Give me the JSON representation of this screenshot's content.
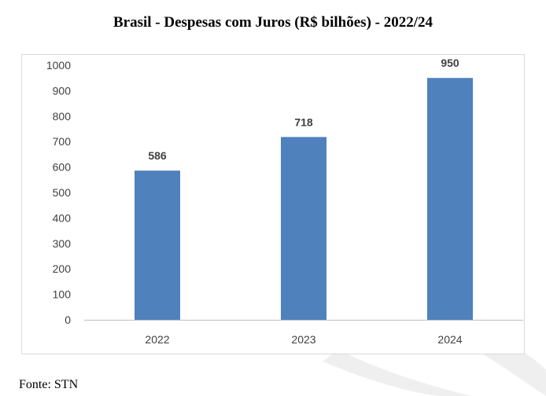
{
  "title": "Brasil - Despesas com Juros (R$ bilhões) - 2022/24",
  "source": "Fonte: STN",
  "colors": {
    "bar": "#4f81bd",
    "axis": "#bfbfbf",
    "tick_text": "#404040",
    "label_text": "#404040"
  },
  "chart_data": {
    "type": "bar",
    "title": "Brasil - Despesas com Juros (R$ bilhões) - 2022/24",
    "xlabel": "",
    "ylabel": "",
    "categories": [
      "2022",
      "2023",
      "2024"
    ],
    "values": [
      586,
      718,
      950
    ],
    "ylim": [
      0,
      1000
    ],
    "yticks": [
      0,
      100,
      200,
      300,
      400,
      500,
      600,
      700,
      800,
      900,
      1000
    ],
    "grid": false,
    "legend": "none",
    "data_labels": true
  }
}
